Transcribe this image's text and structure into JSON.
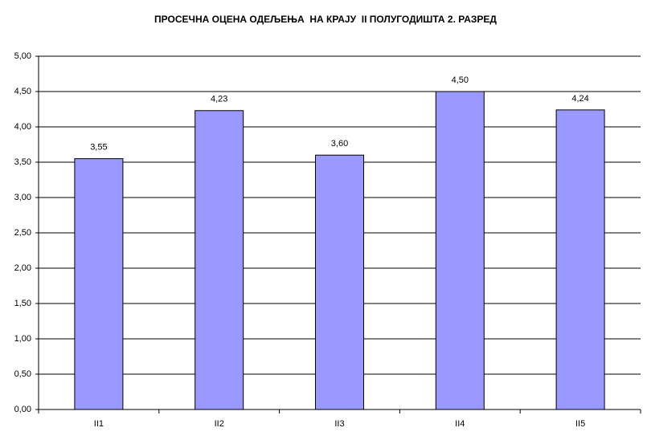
{
  "chart_data": {
    "type": "bar",
    "title": "ПРОСЕЧНА ОЦЕНА ОДЕЉЕЊА  НА КРАЈУ  II ПОЛУГОДИШТА 2. РАЗРЕД",
    "categories": [
      "II1",
      "II2",
      "II3",
      "II4",
      "II5"
    ],
    "values": [
      3.55,
      4.23,
      3.6,
      4.5,
      4.24
    ],
    "value_labels": [
      "3,55",
      "4,23",
      "3,60",
      "4,50",
      "4,24"
    ],
    "color": "#9999ff",
    "ylim": [
      0,
      5
    ],
    "yticks": [
      {
        "value": 0,
        "label": "0,00"
      },
      {
        "value": 0.5,
        "label": "0,50"
      },
      {
        "value": 1,
        "label": "1,00"
      },
      {
        "value": 1.5,
        "label": "1,50"
      },
      {
        "value": 2,
        "label": "2,00"
      },
      {
        "value": 2.5,
        "label": "2,50"
      },
      {
        "value": 3,
        "label": "3,00"
      },
      {
        "value": 3.5,
        "label": "3,50"
      },
      {
        "value": 4,
        "label": "4,00"
      },
      {
        "value": 4.5,
        "label": "4,50"
      },
      {
        "value": 5,
        "label": "5,00"
      }
    ],
    "grid": true
  }
}
